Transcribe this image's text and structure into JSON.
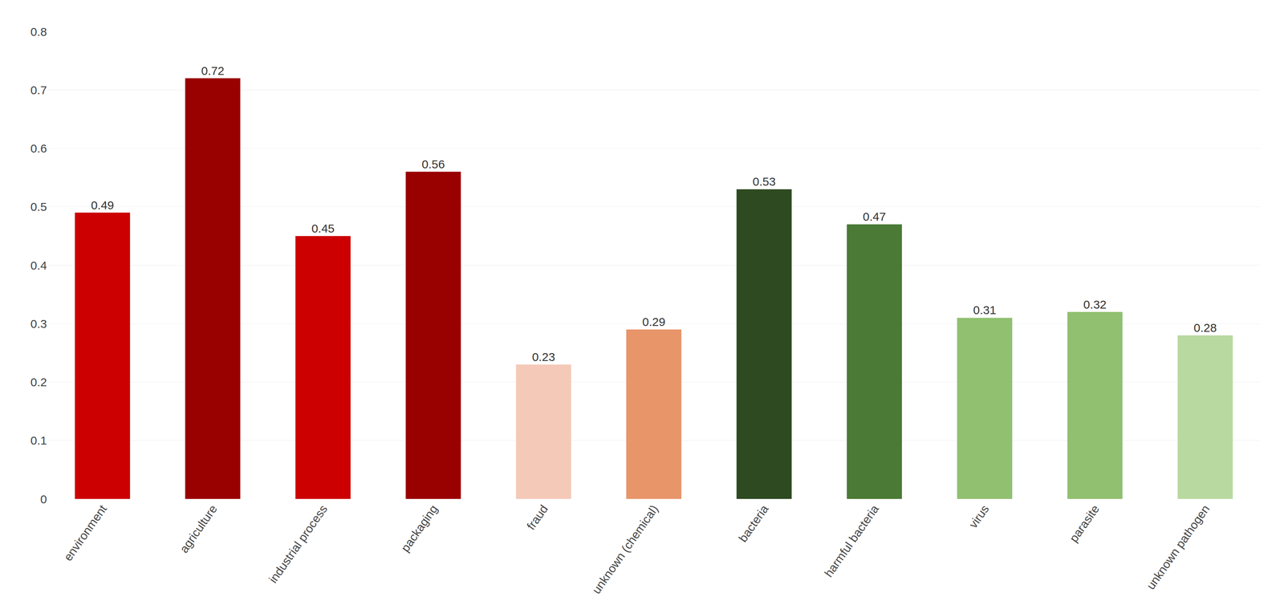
{
  "chart_data": {
    "type": "bar",
    "categories": [
      "environment",
      "agriculture",
      "industrial process",
      "packaging",
      "fraud",
      "unknown (chemical)",
      "bacteria",
      "harmful bacteria",
      "virus",
      "parasite",
      "unknown pathogen"
    ],
    "values": [
      0.49,
      0.72,
      0.45,
      0.56,
      0.23,
      0.29,
      0.53,
      0.47,
      0.31,
      0.32,
      0.28
    ],
    "colors": [
      "#CC0000",
      "#990000",
      "#CC0000",
      "#990000",
      "#F5C9B8",
      "#E8956A",
      "#2D4A20",
      "#4A7A35",
      "#90C070",
      "#90C070",
      "#B8D9A0"
    ],
    "ylim": [
      0,
      0.8
    ],
    "yticks": [
      0,
      0.1,
      0.2,
      0.3,
      0.4,
      0.5,
      0.6,
      0.7,
      0.8
    ],
    "grid": true,
    "data_labels": true
  }
}
